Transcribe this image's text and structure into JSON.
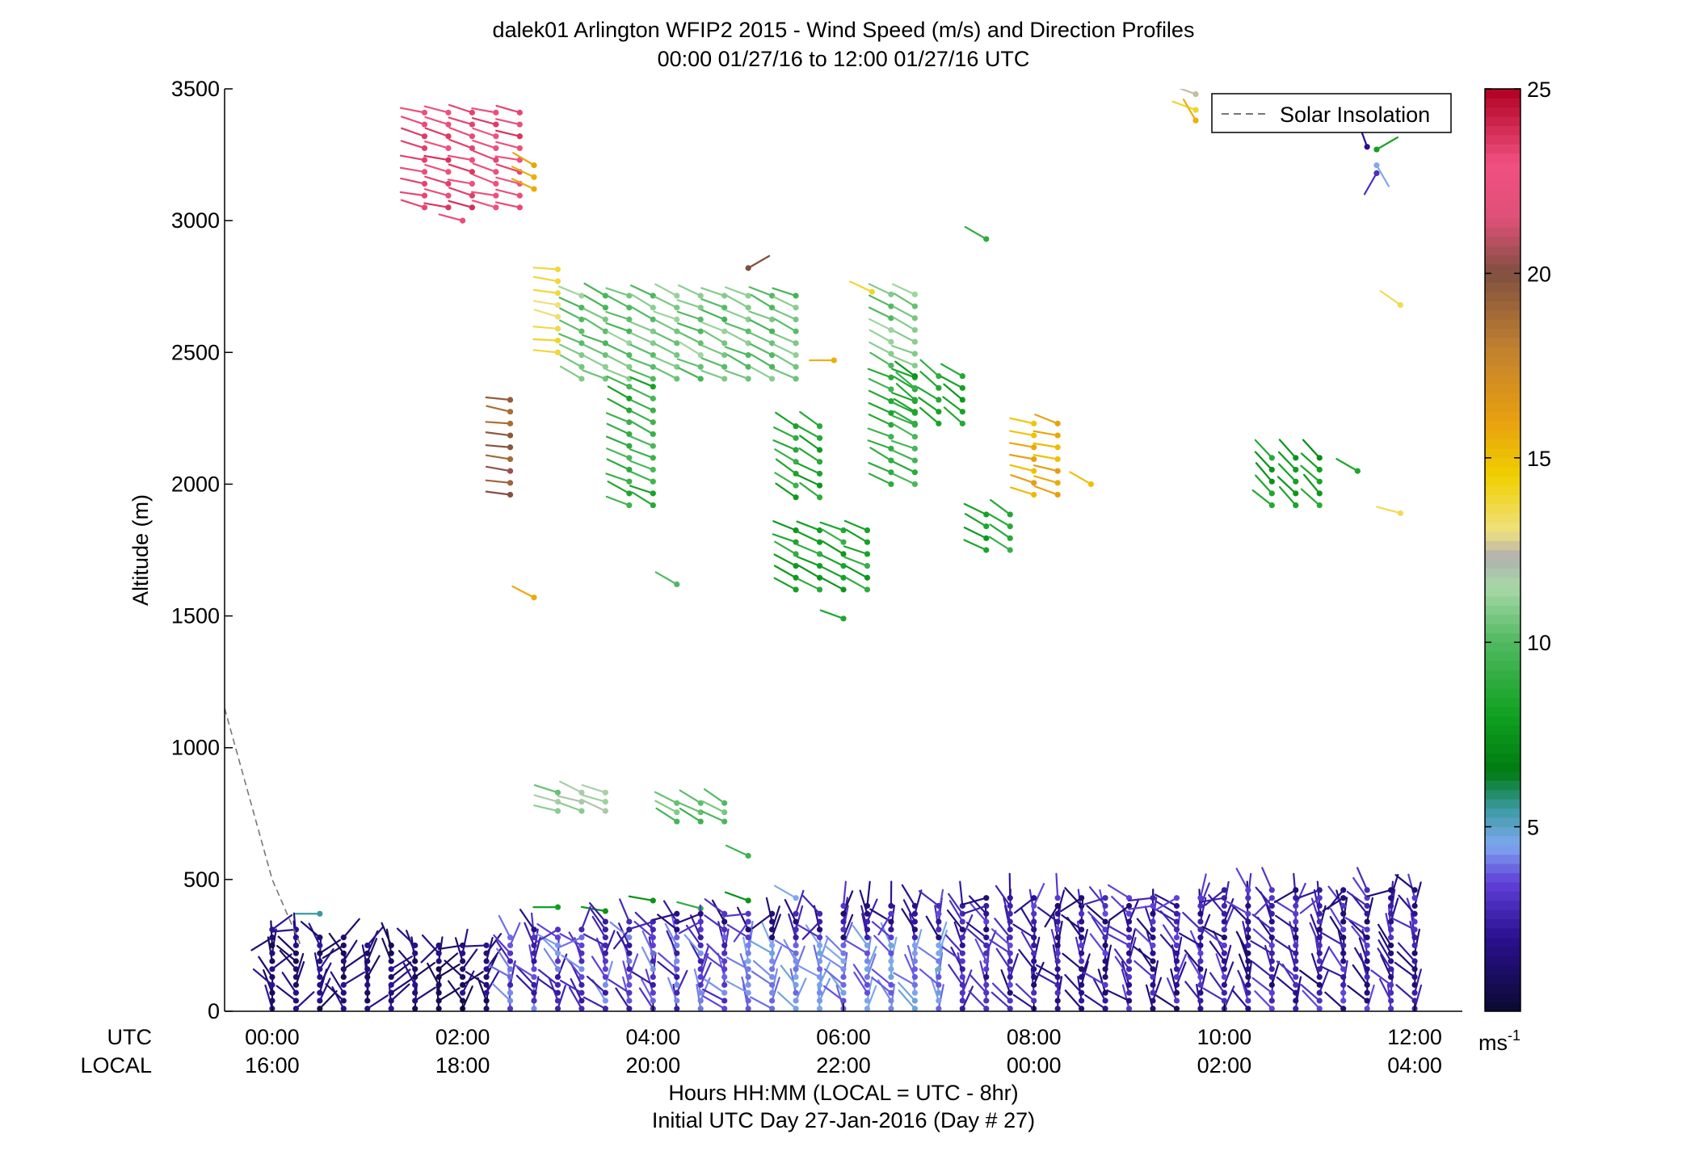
{
  "chart_data": {
    "type": "wind-barb-profile",
    "title": "dalek01 Arlington WFIP2 2015 - Wind Speed (m/s) and Direction Profiles",
    "subtitle": "00:00 01/27/16 to 12:00 01/27/16  UTC",
    "ylabel": "Altitude (m)",
    "ylim": [
      0,
      3500
    ],
    "y_ticks": [
      0,
      500,
      1000,
      1500,
      2000,
      2500,
      3000,
      3500
    ],
    "xlim_hours": [
      -0.5,
      12.5
    ],
    "x_row_labels": {
      "utc": "UTC",
      "local": "LOCAL"
    },
    "x_ticks_utc": [
      "00:00",
      "02:00",
      "04:00",
      "06:00",
      "08:00",
      "10:00",
      "12:00"
    ],
    "x_ticks_local": [
      "16:00",
      "18:00",
      "20:00",
      "22:00",
      "00:00",
      "02:00",
      "04:00"
    ],
    "x_tick_hours": [
      0,
      2,
      4,
      6,
      8,
      10,
      12
    ],
    "xlabel_line1": "Hours HH:MM  (LOCAL = UTC - 8hr)",
    "xlabel_line2": "Initial UTC Day 27-Jan-2016 (Day # 27)",
    "legend": {
      "entry": "Solar Insolation",
      "style": "dashed",
      "color": "#777777",
      "placement": "top-right"
    },
    "solar_insolation_line": [
      {
        "hour": -0.5,
        "alt": 1150
      },
      {
        "hour": 0.0,
        "alt": 500
      },
      {
        "hour": 0.3,
        "alt": 250
      }
    ],
    "colorbar": {
      "min": 0,
      "max": 25,
      "ticks": [
        5,
        10,
        15,
        20,
        25
      ],
      "unit_label_base": "ms",
      "unit_label_exp": "-1",
      "stops": [
        {
          "v": 0,
          "c": "#0a0a30"
        },
        {
          "v": 2,
          "c": "#2a1090"
        },
        {
          "v": 3.5,
          "c": "#6040d8"
        },
        {
          "v": 4.5,
          "c": "#80a8f0"
        },
        {
          "v": 5.5,
          "c": "#3a9aa0"
        },
        {
          "v": 6.5,
          "c": "#007a10"
        },
        {
          "v": 8,
          "c": "#10a020"
        },
        {
          "v": 10,
          "c": "#50b860"
        },
        {
          "v": 11.5,
          "c": "#a8d8a8"
        },
        {
          "v": 12.3,
          "c": "#b0b0b0"
        },
        {
          "v": 13,
          "c": "#f0e080"
        },
        {
          "v": 14.5,
          "c": "#f0d000"
        },
        {
          "v": 16,
          "c": "#e8a010"
        },
        {
          "v": 18,
          "c": "#c08030"
        },
        {
          "v": 20,
          "c": "#805040"
        },
        {
          "v": 21.5,
          "c": "#e05078"
        },
        {
          "v": 23,
          "c": "#f05080"
        },
        {
          "v": 25,
          "c": "#b00020"
        }
      ]
    },
    "wind_clusters": [
      {
        "t0": 1.6,
        "t1": 2.6,
        "dt": 0.25,
        "a0": 3050,
        "a1": 3420,
        "da": 45,
        "speed": 23,
        "dir": 255
      },
      {
        "t0": 2.5,
        "t1": 2.5,
        "dt": 0.25,
        "a0": 1960,
        "a1": 2360,
        "da": 45,
        "speed": 19.5,
        "dir": 260
      },
      {
        "t0": 2.75,
        "t1": 2.75,
        "dt": 0.25,
        "a0": 3120,
        "a1": 3220,
        "da": 45,
        "speed": 16,
        "dir": 240
      },
      {
        "t0": 2.75,
        "t1": 2.75,
        "dt": 0.25,
        "a0": 1570,
        "a1": 1570,
        "da": 45,
        "speed": 16.5,
        "dir": 245
      },
      {
        "t0": 3.0,
        "t1": 3.0,
        "dt": 0.25,
        "a0": 2500,
        "a1": 2820,
        "da": 45,
        "speed": 13.5,
        "dir": 260
      },
      {
        "t0": 3.25,
        "t1": 5.6,
        "dt": 0.25,
        "a0": 2400,
        "a1": 2750,
        "da": 45,
        "speed": 10.5,
        "dir": 245
      },
      {
        "t0": 3.75,
        "t1": 4.1,
        "dt": 0.25,
        "a0": 1920,
        "a1": 2400,
        "da": 45,
        "speed": 9,
        "dir": 245
      },
      {
        "t0": 5.5,
        "t1": 5.75,
        "dt": 0.25,
        "a0": 1950,
        "a1": 2220,
        "da": 45,
        "speed": 8.5,
        "dir": 240
      },
      {
        "t0": 5.5,
        "t1": 6.3,
        "dt": 0.25,
        "a0": 1600,
        "a1": 1860,
        "da": 45,
        "speed": 8.5,
        "dir": 245
      },
      {
        "t0": 6.5,
        "t1": 6.8,
        "dt": 0.25,
        "a0": 2000,
        "a1": 2420,
        "da": 45,
        "speed": 9,
        "dir": 245
      },
      {
        "t0": 6.5,
        "t1": 6.75,
        "dt": 0.25,
        "a0": 2450,
        "a1": 2730,
        "da": 45,
        "speed": 10.5,
        "dir": 245
      },
      {
        "t0": 6.75,
        "t1": 7.25,
        "dt": 0.25,
        "a0": 2230,
        "a1": 2450,
        "da": 45,
        "speed": 8.5,
        "dir": 235
      },
      {
        "t0": 7.5,
        "t1": 7.75,
        "dt": 0.25,
        "a0": 1750,
        "a1": 1900,
        "da": 45,
        "speed": 8.5,
        "dir": 240
      },
      {
        "t0": 8.0,
        "t1": 8.25,
        "dt": 0.25,
        "a0": 1960,
        "a1": 2270,
        "da": 45,
        "speed": 15.5,
        "dir": 255
      },
      {
        "t0": 10.5,
        "t1": 11.0,
        "dt": 0.25,
        "a0": 1920,
        "a1": 2140,
        "da": 45,
        "speed": 8,
        "dir": 225
      },
      {
        "t0": 3.0,
        "t1": 3.5,
        "dt": 0.25,
        "a0": 760,
        "a1": 830,
        "da": 35,
        "speed": 11,
        "dir": 250
      },
      {
        "t0": 4.25,
        "t1": 4.9,
        "dt": 0.25,
        "a0": 720,
        "a1": 790,
        "da": 35,
        "speed": 10,
        "dir": 240
      }
    ],
    "wind_singles": [
      {
        "t": 2.0,
        "alt": 3000,
        "speed": 22,
        "dir": 255
      },
      {
        "t": 4.25,
        "alt": 1620,
        "speed": 10,
        "dir": 240
      },
      {
        "t": 5.0,
        "alt": 2820,
        "speed": 20,
        "dir": 120
      },
      {
        "t": 5.9,
        "alt": 2470,
        "speed": 15.5,
        "dir": 270
      },
      {
        "t": 6.0,
        "alt": 1490,
        "speed": 8.5,
        "dir": 250
      },
      {
        "t": 6.3,
        "alt": 2730,
        "speed": 14,
        "dir": 245
      },
      {
        "t": 7.5,
        "alt": 2930,
        "speed": 9,
        "dir": 240
      },
      {
        "t": 5.0,
        "alt": 590,
        "speed": 9.5,
        "dir": 245
      },
      {
        "t": 8.6,
        "alt": 2000,
        "speed": 15,
        "dir": 240
      },
      {
        "t": 11.4,
        "alt": 2050,
        "speed": 8.5,
        "dir": 240
      },
      {
        "t": 11.85,
        "alt": 2680,
        "speed": 13.5,
        "dir": 235
      },
      {
        "t": 11.85,
        "alt": 1890,
        "speed": 13.5,
        "dir": 255
      },
      {
        "t": 9.7,
        "alt": 3480,
        "speed": 12.5,
        "dir": 250
      },
      {
        "t": 9.7,
        "alt": 3420,
        "speed": 14,
        "dir": 250
      },
      {
        "t": 9.7,
        "alt": 3380,
        "speed": 15.5,
        "dir": 210
      },
      {
        "t": 11.6,
        "alt": 3270,
        "speed": 8,
        "dir": 120
      },
      {
        "t": 11.6,
        "alt": 3180,
        "speed": 3,
        "dir": 330
      },
      {
        "t": 11.6,
        "alt": 3210,
        "speed": 4.5,
        "dir": 30
      },
      {
        "t": 11.5,
        "alt": 3280,
        "speed": 2,
        "dir": 200
      },
      {
        "t": 3.0,
        "alt": 395,
        "speed": 8,
        "dir": 270
      },
      {
        "t": 3.5,
        "alt": 380,
        "speed": 7.5,
        "dir": 260
      },
      {
        "t": 4.0,
        "alt": 420,
        "speed": 7.5,
        "dir": 260
      },
      {
        "t": 4.5,
        "alt": 390,
        "speed": 9,
        "dir": 255
      },
      {
        "t": 5.0,
        "alt": 420,
        "speed": 7.5,
        "dir": 250
      },
      {
        "t": 5.5,
        "alt": 430,
        "speed": 4.5,
        "dir": 240
      },
      {
        "t": 0.5,
        "alt": 370,
        "speed": 5.5,
        "dir": 270
      }
    ],
    "low_level": {
      "t_start": 0.0,
      "t_end": 12.0,
      "dt": 0.25,
      "a_step": 30,
      "top_profile": [
        [
          0,
          330
        ],
        [
          1.5,
          250
        ],
        [
          2,
          260
        ],
        [
          3,
          330
        ],
        [
          4.5,
          380
        ],
        [
          6,
          400
        ],
        [
          8,
          440
        ],
        [
          10,
          460
        ],
        [
          12,
          480
        ]
      ],
      "notes": "Dense low-level wind barbs below ~500 m, speeds mostly 1-5 m/s, predominantly southerly to southwesterly"
    }
  }
}
